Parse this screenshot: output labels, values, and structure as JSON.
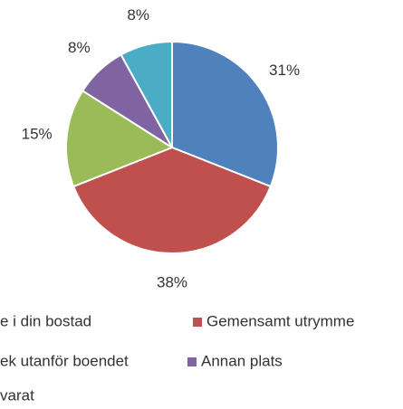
{
  "chart_data": {
    "type": "pie",
    "categories": [
      "e i din bostad",
      "Gemensamt utrymme",
      "ek utanför boendet",
      "Annan plats",
      "varat"
    ],
    "values": [
      31,
      38,
      15,
      8,
      8
    ],
    "value_labels": [
      "31%",
      "38%",
      "15%",
      "8%",
      "8%"
    ],
    "colors": [
      "#4f81bd",
      "#c0504d",
      "#9bbb59",
      "#8064a2",
      "#4bacc6"
    ],
    "legend": "bottom"
  }
}
